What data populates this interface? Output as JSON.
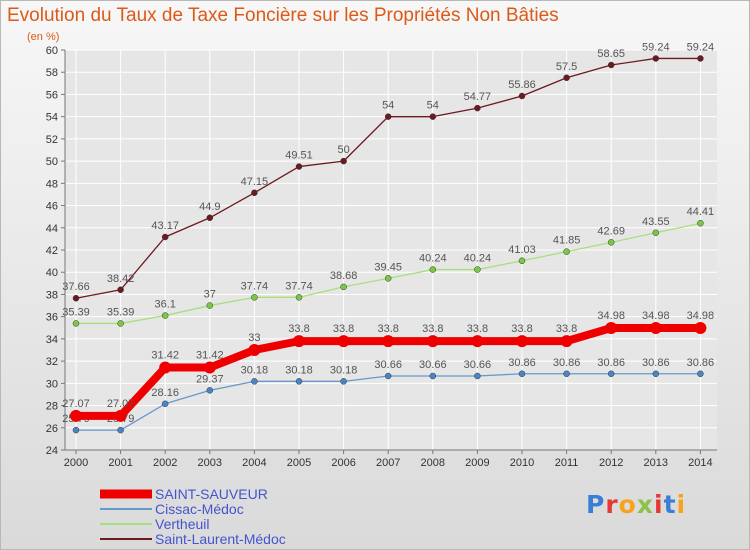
{
  "chart_data": {
    "type": "line",
    "title": "Evolution du Taux de Taxe Foncière sur les Propriétés Non Bâties",
    "subtitle": "(en %)",
    "xlabel": "",
    "ylabel": "(en %)",
    "ylim": [
      24,
      60
    ],
    "yticks": [
      24,
      26,
      28,
      30,
      32,
      34,
      36,
      38,
      40,
      42,
      44,
      46,
      48,
      50,
      52,
      54,
      56,
      58,
      60
    ],
    "grid": true,
    "x": [
      "2000",
      "2001",
      "2002",
      "2003",
      "2004",
      "2005",
      "2006",
      "2007",
      "2008",
      "2009",
      "2010",
      "2011",
      "2012",
      "2013",
      "2014"
    ],
    "series": [
      {
        "name": "Saint-Laurent-Médoc",
        "color": "#6b1a1f",
        "marker": "#6b1a1f",
        "values": [
          37.66,
          38.42,
          43.17,
          44.9,
          47.15,
          49.51,
          50,
          54,
          54,
          54.77,
          55.86,
          57.5,
          58.65,
          59.24,
          59.24
        ],
        "labels": [
          "37.66",
          "38.42",
          "43.17",
          "44.9",
          "47.15",
          "49.51",
          "50",
          "54",
          "54",
          "54.77",
          "55.86",
          "57.5",
          "58.65",
          "59.24",
          "59.24"
        ]
      },
      {
        "name": "Vertheuil",
        "color": "#a6e07e",
        "marker": "#7ac943",
        "values": [
          35.39,
          35.39,
          36.1,
          37,
          37.74,
          37.74,
          38.68,
          39.45,
          40.24,
          40.24,
          41.03,
          41.85,
          42.69,
          43.55,
          44.41
        ],
        "labels": [
          "35.39",
          "35.39",
          "36.1",
          "37",
          "37.74",
          "37.74",
          "38.68",
          "39.45",
          "40.24",
          "40.24",
          "41.03",
          "41.85",
          "42.69",
          "43.55",
          "44.41"
        ]
      },
      {
        "name": "Cissac-Médoc",
        "color": "#6699cc",
        "marker": "#4a86c5",
        "values": [
          25.79,
          25.79,
          28.16,
          29.37,
          30.18,
          30.18,
          30.18,
          30.66,
          30.66,
          30.66,
          30.86,
          30.86,
          30.86,
          30.86,
          30.86
        ],
        "labels": [
          "25.79",
          "25.79",
          "28.16",
          "29.37",
          "30.18",
          "30.18",
          "30.18",
          "30.66",
          "30.66",
          "30.66",
          "30.86",
          "30.86",
          "30.86",
          "30.86",
          "30.86"
        ]
      },
      {
        "name": "SAINT-SAUVEUR",
        "color": "#ee0000",
        "marker": "#ee0000",
        "values": [
          27.07,
          27.07,
          31.42,
          31.42,
          33,
          33.8,
          33.8,
          33.8,
          33.8,
          33.8,
          33.8,
          33.8,
          34.98,
          34.98,
          34.98
        ],
        "labels": [
          "27.07",
          "27.07",
          "31.42",
          "31.42",
          "33",
          "33.8",
          "33.8",
          "33.8",
          "33.8",
          "33.8",
          "33.8",
          "33.8",
          "34.98",
          "34.98",
          "34.98"
        ]
      }
    ],
    "legend": {
      "placement": "bottom-left",
      "entries": [
        {
          "name": "SAINT-SAUVEUR",
          "color": "#ee0000",
          "text_color": "#4455cc"
        },
        {
          "name": "Cissac-Médoc",
          "color": "#6699cc",
          "text_color": "#4455cc"
        },
        {
          "name": "Vertheuil",
          "color": "#a6e07e",
          "text_color": "#4455cc"
        },
        {
          "name": "Saint-Laurent-Médoc",
          "color": "#6b1a1f",
          "text_color": "#4455cc"
        }
      ]
    }
  },
  "logo": {
    "text": "Proxiti",
    "letters": [
      "P",
      "r",
      "o",
      "x",
      "i",
      "t",
      "i"
    ],
    "colors": [
      "#3a7fd5",
      "#e53935",
      "#f7a31c",
      "#8bc34a",
      "#e53935",
      "#3a7fd5",
      "#f7a31c"
    ]
  },
  "colors": {
    "title": "#dc5a18",
    "axis": "#777777",
    "grid": "#ffffff",
    "legend_text": "#4455cc"
  }
}
